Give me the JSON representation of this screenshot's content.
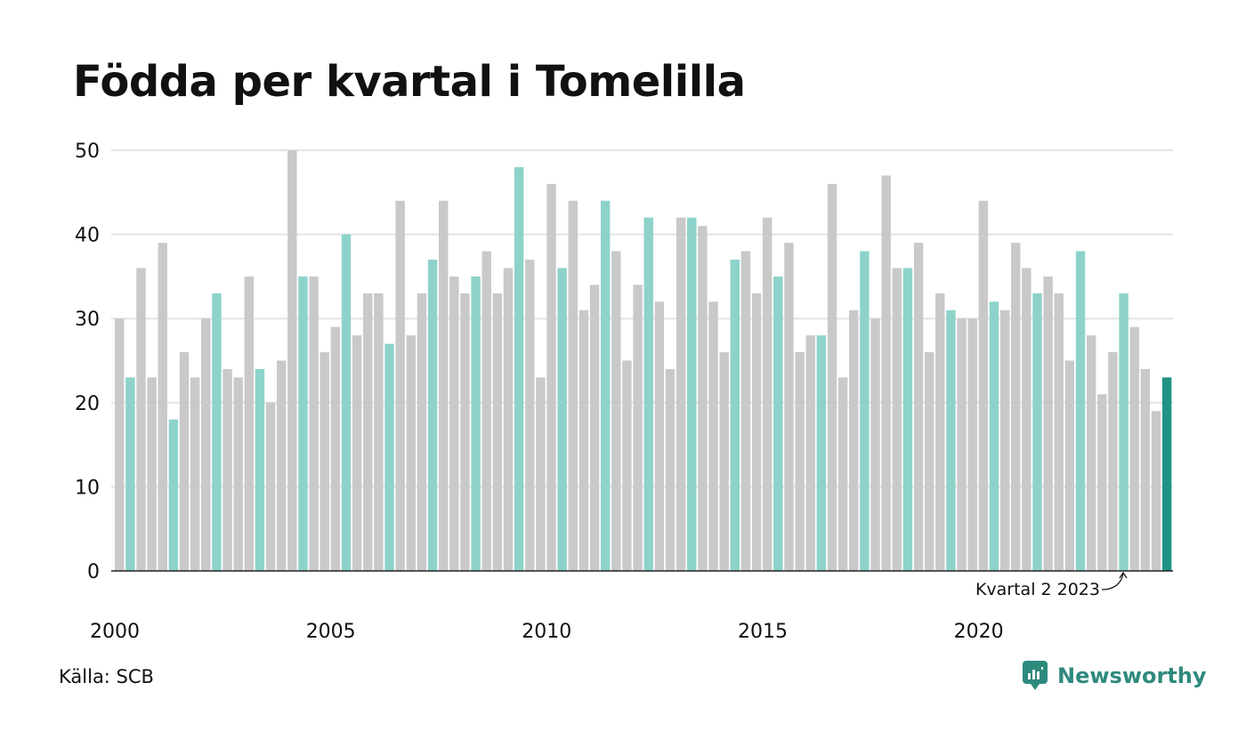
{
  "chart_data": {
    "type": "bar",
    "title": "Födda per kvartal i Tomelilla",
    "xlabel": "",
    "ylabel": "",
    "ylim": [
      0,
      50
    ],
    "yticks": [
      0,
      10,
      20,
      30,
      40,
      50
    ],
    "x_tick_labels": [
      "2000",
      "2005",
      "2010",
      "2015",
      "2020"
    ],
    "grid": true,
    "series": [
      {
        "values": [
          30,
          23,
          36,
          23,
          39,
          18,
          26,
          23,
          30,
          33,
          24,
          23,
          35,
          24,
          20,
          25,
          50,
          35,
          35,
          26,
          29,
          40,
          28,
          33,
          33,
          27,
          44,
          28,
          33,
          37,
          44,
          35,
          33,
          35,
          38,
          33,
          36,
          48,
          37,
          23,
          46,
          36,
          44,
          31,
          34,
          44,
          38,
          25,
          34,
          42,
          32,
          24,
          42,
          42,
          41,
          32,
          26,
          37,
          38,
          33,
          42,
          35,
          39,
          26,
          28,
          28,
          46,
          23,
          31,
          38,
          30,
          47,
          36,
          36,
          39,
          26,
          33,
          31,
          30,
          30,
          44,
          32,
          31,
          39,
          36,
          33,
          35,
          33,
          25,
          38,
          28,
          21,
          26,
          33,
          29,
          24,
          19,
          23
        ]
      }
    ],
    "annotation": "Kvartal 2 2023",
    "colors": {
      "default": "#c9c9c9",
      "same_quarter": "#8dd3cb",
      "latest": "#1f9484",
      "grid": "#e3e3e3",
      "axis": "#222222"
    }
  },
  "footer": {
    "source": "Källa: SCB",
    "brand": "Newsworthy"
  }
}
